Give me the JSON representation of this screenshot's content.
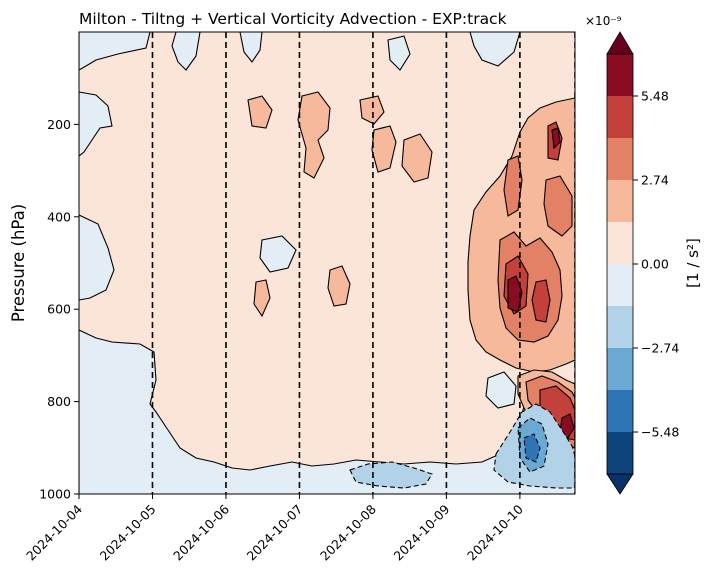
{
  "chart_data": {
    "type": "heatmap",
    "subtype": "filled-contour",
    "title": "Milton - Tiltng + Vertical Vorticity Advection - EXP:track",
    "xlabel": "",
    "ylabel": "Pressure (hPa)",
    "x_ticks": [
      "2024-10-04",
      "2024-10-05",
      "2024-10-06",
      "2024-10-07",
      "2024-10-08",
      "2024-10-09",
      "2024-10-10"
    ],
    "x_range": [
      "2024-10-04T00:00",
      "2024-10-10T18:00"
    ],
    "y_ticks": [
      "200",
      "400",
      "600",
      "800",
      "1000"
    ],
    "y_range": [
      1000,
      0
    ],
    "y_inverted": true,
    "vertical_dashed_lines_at": [
      "2024-10-05",
      "2024-10-06",
      "2024-10-07",
      "2024-10-08",
      "2024-10-09",
      "2024-10-10",
      "2024-10-10T18:00"
    ],
    "colorbar": {
      "label": "[1 / s²]",
      "offset_text": "×10⁻⁹",
      "ticks": [
        "5.48",
        "2.74",
        "0.00",
        "−2.74",
        "−5.48"
      ],
      "levels": [
        -6.85,
        -5.48,
        -4.11,
        -2.74,
        -1.37,
        0,
        1.37,
        2.74,
        4.11,
        5.48,
        6.85
      ],
      "colors": [
        "#0f437b",
        "#2e75b6",
        "#6aa9d3",
        "#b2d3e7",
        "#e3edf6",
        "#fbe4d8",
        "#f6b99b",
        "#e38166",
        "#c3403b",
        "#890c22"
      ],
      "extend": "both",
      "under_color": "#08306b",
      "over_color": "#67001f"
    },
    "description_values": {
      "background_class": "0.00 to 1.37",
      "max_positive_region": "near 2024-10-10, 500-700 hPa and 750-900 hPa",
      "max_negative_region": "near 2024-10-10, 880-1000 hPa"
    }
  }
}
